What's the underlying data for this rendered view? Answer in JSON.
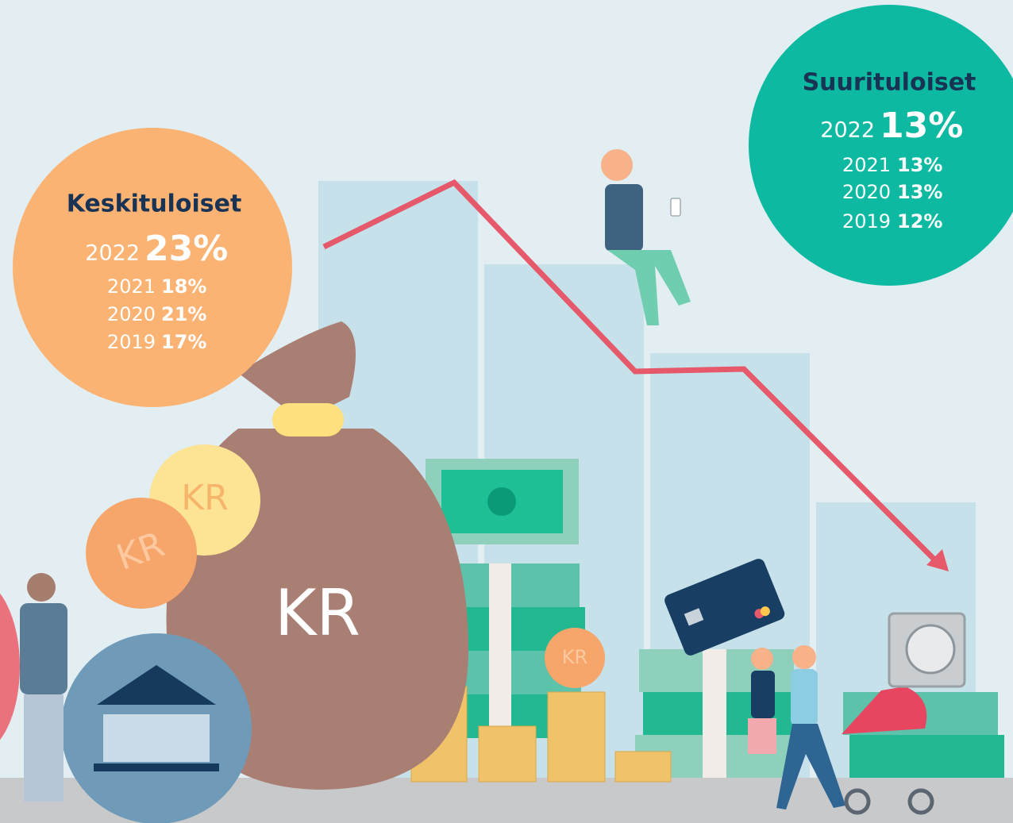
{
  "groups": [
    {
      "title": "Keskituloiset",
      "main": {
        "year": "2022",
        "value": "23%"
      },
      "history": [
        {
          "year": "2021",
          "value": "18%"
        },
        {
          "year": "2020",
          "value": "21%"
        },
        {
          "year": "2019",
          "value": "17%"
        }
      ]
    },
    {
      "title": "Suurituloiset",
      "main": {
        "year": "2022",
        "value": "13%"
      },
      "history": [
        {
          "year": "2021",
          "value": "13%"
        },
        {
          "year": "2020",
          "value": "13%"
        },
        {
          "year": "2019",
          "value": "12%"
        }
      ]
    }
  ],
  "currency_labels": [
    "KR",
    "KR",
    "KR",
    "KR"
  ]
}
